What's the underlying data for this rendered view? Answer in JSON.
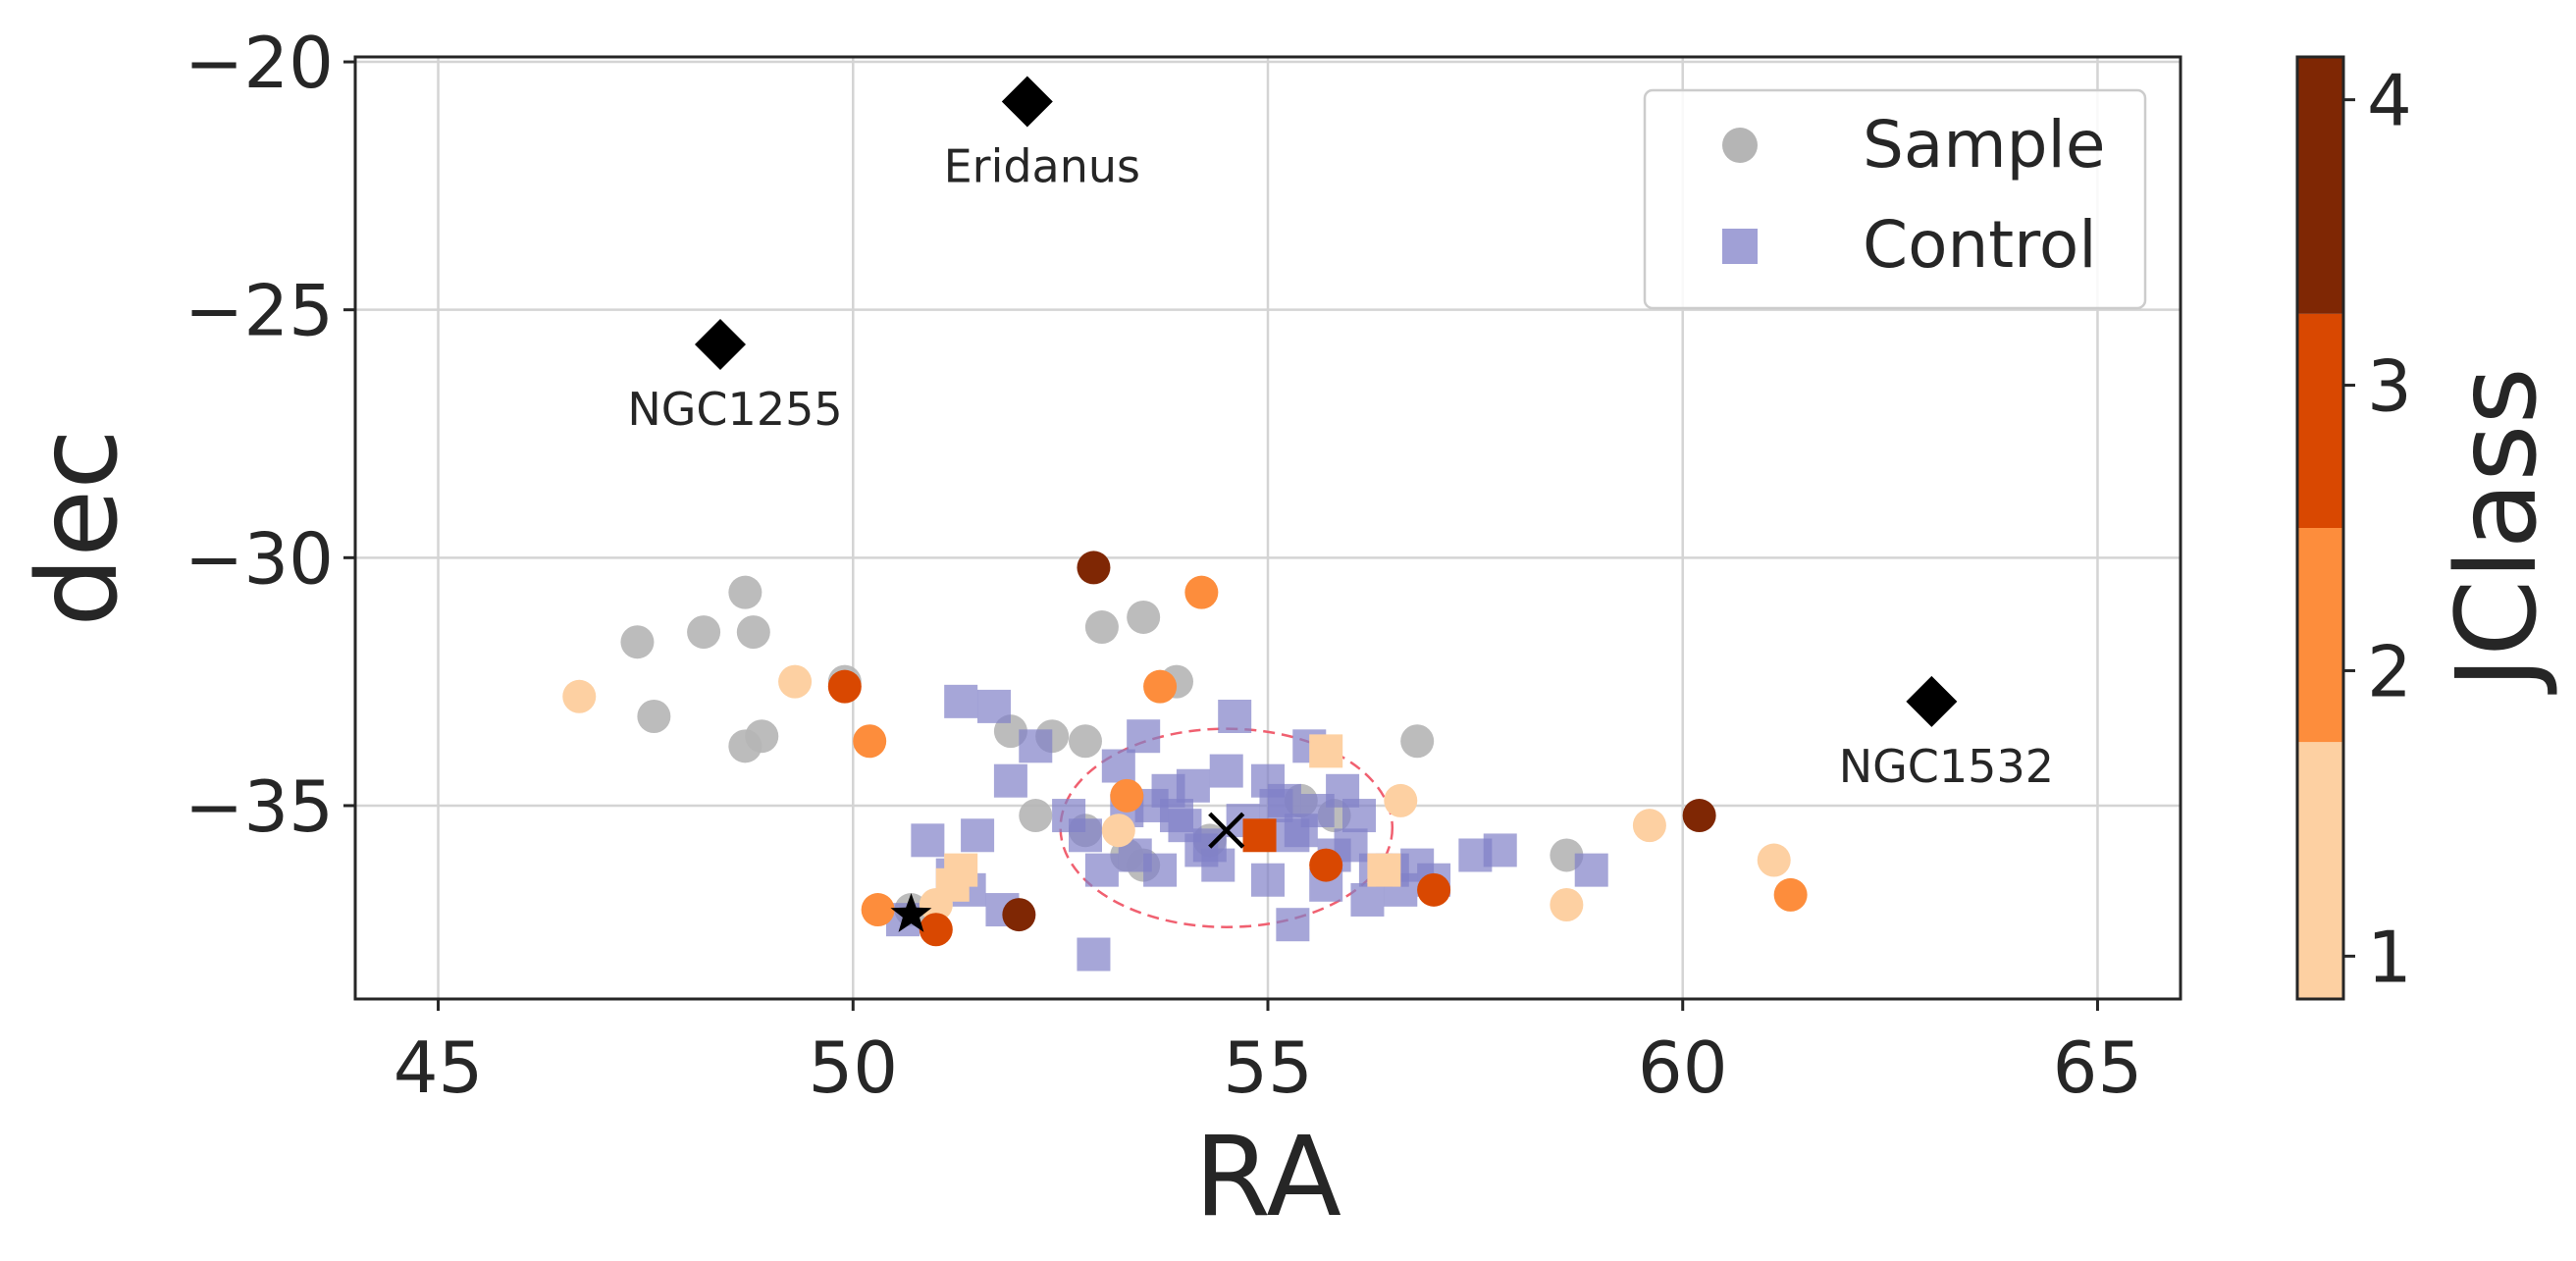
{
  "chart_data": {
    "type": "scatter",
    "xlabel": "RA",
    "ylabel": "dec",
    "xlim": [
      44,
      66
    ],
    "ylim": [
      -38.9,
      -19.9
    ],
    "x_ticks": [
      45,
      50,
      55,
      60,
      65
    ],
    "x_tick_labels": [
      "45",
      "50",
      "55",
      "60",
      "65"
    ],
    "y_ticks": [
      -20,
      -25,
      -30,
      -35
    ],
    "y_tick_labels": [
      "−20",
      "−25",
      "−30",
      "−35"
    ],
    "grid": true,
    "legend_position": "top-right",
    "colorbar": {
      "label": "JClass",
      "ticks": [
        1,
        2,
        3,
        4
      ],
      "tick_labels": [
        "1",
        "2",
        "3",
        "4"
      ],
      "range": [
        0.85,
        4.15
      ],
      "bins": [
        {
          "from": 0.85,
          "to": 1.75,
          "color": "#fdd0a2"
        },
        {
          "from": 1.75,
          "to": 2.5,
          "color": "#fd8d3c"
        },
        {
          "from": 2.5,
          "to": 3.25,
          "color": "#d94801"
        },
        {
          "from": 3.25,
          "to": 4.15,
          "color": "#7f2704"
        }
      ]
    },
    "colors": {
      "sample_gray": "#b5b5b5",
      "control": "#8080c8",
      "jclass": {
        "1": "#fdd0a2",
        "2": "#fd8d3c",
        "3": "#d94801",
        "4": "#7f2704"
      },
      "ellipse": "#f06070",
      "marker_black": "#000000",
      "axis": "#262626",
      "grid": "#d4d4d4"
    },
    "series": [
      {
        "name": "Sample",
        "marker": "circle",
        "color": "#b5b5b5",
        "x": [
          47.4,
          47.6,
          48.2,
          48.7,
          48.8,
          48.9,
          48.7,
          49.9,
          51.9,
          52.4,
          52.8,
          53.0,
          53.5,
          53.9,
          52.2,
          52.8,
          53.3,
          53.5,
          54.3,
          55.4,
          55.8,
          56.8,
          58.6,
          50.7
        ],
        "y": [
          -31.7,
          -33.2,
          -31.5,
          -30.7,
          -31.5,
          -33.6,
          -33.8,
          -32.5,
          -33.5,
          -33.6,
          -33.7,
          -31.4,
          -31.2,
          -32.5,
          -35.2,
          -35.5,
          -36.0,
          -36.2,
          -35.7,
          -34.9,
          -35.2,
          -33.7,
          -36.0,
          -37.1
        ]
      },
      {
        "name": "Control",
        "marker": "square",
        "color": "#8080c8",
        "x": [
          51.3,
          51.7,
          52.2,
          51.9,
          50.9,
          51.2,
          51.8,
          51.5,
          52.6,
          53.2,
          53.3,
          53.5,
          53.8,
          54.0,
          54.2,
          54.5,
          54.6,
          55.1,
          55.3,
          55.5,
          55.9,
          56.1,
          56.3,
          56.6,
          56.8,
          57.0,
          57.5,
          57.8,
          58.9,
          52.8,
          53.0,
          53.4,
          53.6,
          53.9,
          54.1,
          54.3,
          54.7,
          55.0,
          55.2,
          55.4,
          55.6,
          55.8,
          56.0,
          56.5,
          55.0,
          55.3,
          52.9,
          50.6,
          51.4,
          53.7,
          54.4,
          55.7,
          56.2
        ],
        "y": [
          -32.9,
          -33.0,
          -33.8,
          -34.5,
          -35.7,
          -36.4,
          -37.1,
          -35.6,
          -35.2,
          -34.2,
          -35.1,
          -33.6,
          -34.7,
          -35.4,
          -35.9,
          -34.3,
          -33.2,
          -35.0,
          -35.6,
          -33.8,
          -34.7,
          -35.2,
          -36.3,
          -36.7,
          -36.2,
          -36.5,
          -36.0,
          -35.9,
          -36.3,
          -35.6,
          -36.3,
          -36.0,
          -35.0,
          -35.2,
          -34.6,
          -35.8,
          -35.3,
          -34.5,
          -34.9,
          -35.5,
          -35.1,
          -36.0,
          -35.8,
          -36.3,
          -36.5,
          -37.4,
          -38.0,
          -37.3,
          -36.7,
          -36.3,
          -36.2,
          -36.6,
          -36.9
        ]
      },
      {
        "name": "Sample JClass 1",
        "marker": "circle",
        "color": "#fdd0a2",
        "x": [
          46.7,
          49.3,
          51.0,
          53.2,
          56.6,
          58.6,
          59.6,
          61.1
        ],
        "y": [
          -32.8,
          -32.5,
          -37.0,
          -35.5,
          -34.9,
          -37.0,
          -35.4,
          -36.1
        ]
      },
      {
        "name": "Sample JClass 2",
        "marker": "circle",
        "color": "#fd8d3c",
        "x": [
          50.2,
          50.3,
          53.3,
          53.7,
          54.2,
          61.3
        ],
        "y": [
          -33.7,
          -37.1,
          -34.8,
          -32.6,
          -30.7,
          -36.8
        ]
      },
      {
        "name": "Sample JClass 3",
        "marker": "circle",
        "color": "#d94801",
        "x": [
          49.9,
          51.0,
          55.7,
          57.0
        ],
        "y": [
          -32.6,
          -37.5,
          -36.2,
          -36.7
        ]
      },
      {
        "name": "Sample JClass 4",
        "marker": "circle",
        "color": "#7f2704",
        "x": [
          52.9,
          52.0,
          60.2
        ],
        "y": [
          -30.2,
          -37.2,
          -35.2
        ]
      },
      {
        "name": "Control JClass 1",
        "marker": "square",
        "color": "#fdd0a2",
        "x": [
          51.3,
          55.7,
          56.4,
          51.2
        ],
        "y": [
          -36.3,
          -33.9,
          -36.3,
          -36.6
        ]
      },
      {
        "name": "Control JClass 3",
        "marker": "square",
        "color": "#d94801",
        "x": [
          54.9
        ],
        "y": [
          -35.6
        ]
      }
    ],
    "landmarks": [
      {
        "label": "Eridanus",
        "x": 52.1,
        "y": -20.8
      },
      {
        "label": "NGC1255",
        "x": 48.4,
        "y": -25.7
      },
      {
        "label": "NGC1532",
        "x": 63.0,
        "y": -32.9
      }
    ],
    "center_cross": {
      "x": 54.5,
      "y": -35.5
    },
    "star": {
      "x": 50.7,
      "y": -37.2
    },
    "ellipse": {
      "cx": 54.5,
      "cy": -35.45,
      "rx": 2.0,
      "ry": 2.0
    },
    "legend": [
      {
        "label": "Sample",
        "marker": "circle",
        "color": "#b5b5b5"
      },
      {
        "label": "Control",
        "marker": "square",
        "color": "#8080c8"
      }
    ]
  }
}
